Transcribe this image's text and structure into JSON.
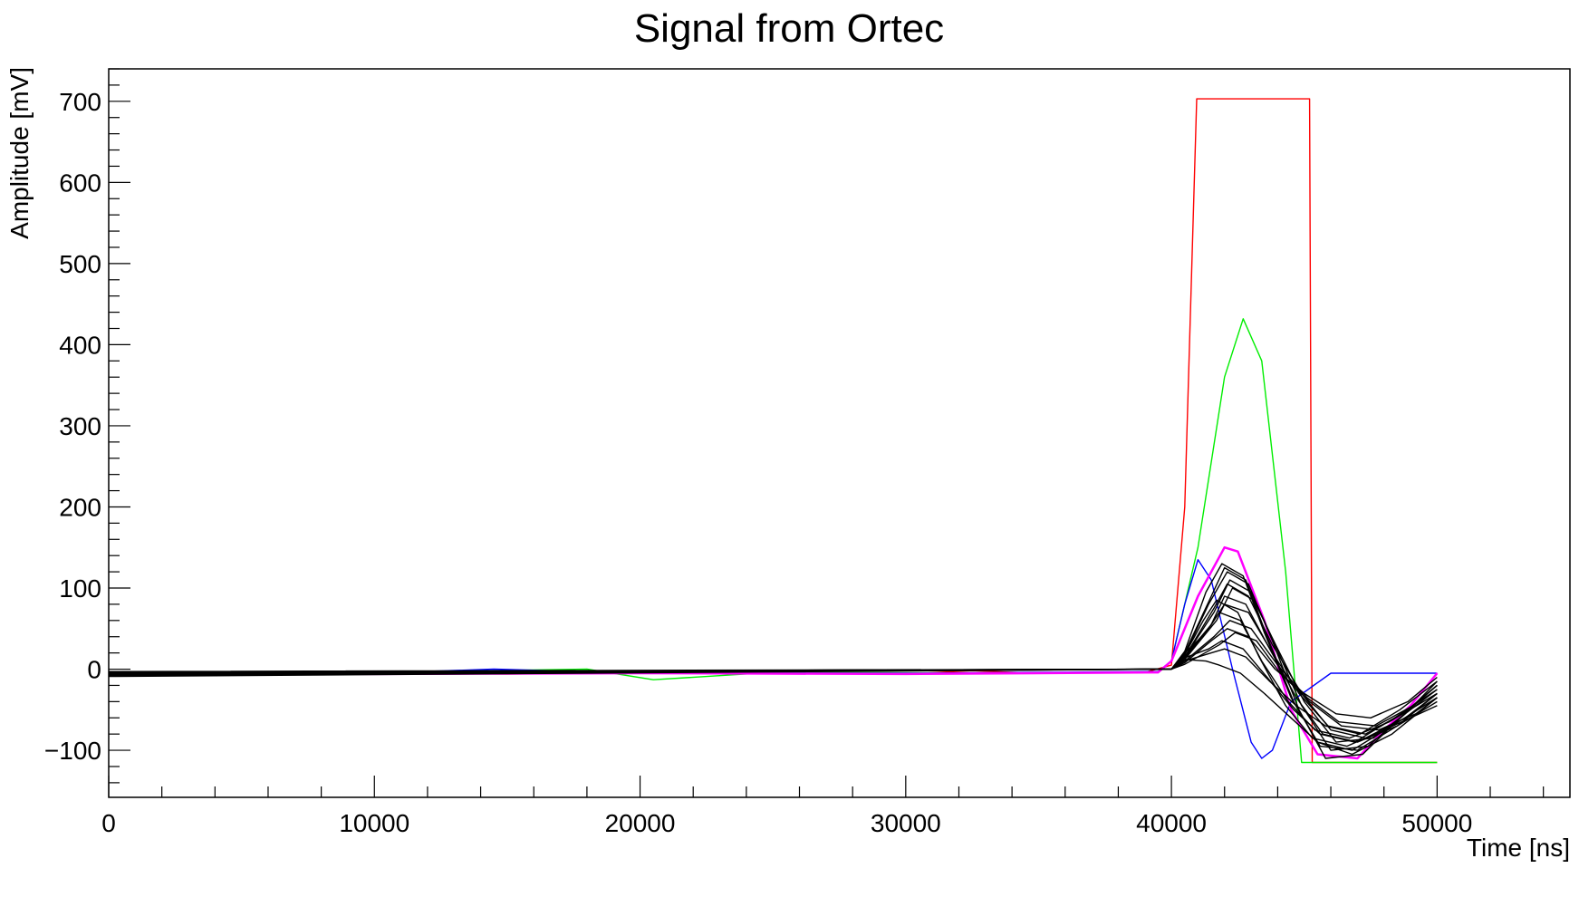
{
  "chart_data": {
    "type": "line",
    "title": "Signal from Ortec",
    "xlabel": "Time [ns]",
    "ylabel": "Amplitude [mV]",
    "xlim": [
      0,
      55000
    ],
    "ylim": [
      -158,
      740
    ],
    "x_ticks": [
      0,
      10000,
      20000,
      30000,
      40000,
      50000
    ],
    "x_tick_labels": [
      "0",
      "10000",
      "20000",
      "30000",
      "40000",
      "50000"
    ],
    "y_ticks": [
      -100,
      0,
      100,
      200,
      300,
      400,
      500,
      600,
      700
    ],
    "y_tick_labels": [
      "−100",
      "0",
      "100",
      "200",
      "300",
      "400",
      "500",
      "600",
      "700"
    ],
    "grid": false,
    "legend": "none",
    "colors": {
      "red": "#ff0000",
      "green": "#00ee00",
      "blue": "#0000ff",
      "magenta": "#ff00ff",
      "black": "#000000"
    },
    "series": [
      {
        "color": "red",
        "x": [
          0,
          5000,
          10000,
          15000,
          20000,
          25000,
          30000,
          32500,
          35000,
          39000,
          40000,
          40500,
          40950,
          45200,
          45300,
          46000,
          50000
        ],
        "y": [
          -6,
          -6,
          -5,
          -6,
          -5,
          -5,
          -6,
          -2,
          -5,
          -4,
          5,
          200,
          703,
          703,
          -115,
          -115,
          -115
        ]
      },
      {
        "color": "green",
        "x": [
          0,
          5000,
          10000,
          18000,
          20500,
          25000,
          35000,
          39500,
          40000,
          41000,
          42000,
          42700,
          43400,
          44300,
          44900,
          50000
        ],
        "y": [
          -5,
          -5,
          -4,
          0,
          -13,
          -4,
          -5,
          -3,
          10,
          150,
          360,
          432,
          380,
          120,
          -115,
          -115
        ]
      },
      {
        "color": "blue",
        "x": [
          0,
          10000,
          14500,
          20000,
          30000,
          39500,
          40000,
          40500,
          41000,
          41500,
          42300,
          43000,
          43400,
          43800,
          44500,
          46000,
          48000,
          50000
        ],
        "y": [
          -4,
          -5,
          0,
          -5,
          -5,
          -3,
          10,
          80,
          135,
          110,
          0,
          -90,
          -110,
          -100,
          -40,
          -5,
          -5,
          -5
        ]
      },
      {
        "color": "magenta",
        "x": [
          0,
          5000,
          10000,
          20000,
          30000,
          39500,
          40000,
          41000,
          42000,
          42500,
          43500,
          44500,
          45500,
          47000,
          48000,
          49000,
          50000
        ],
        "y": [
          -6,
          -5,
          -6,
          -5,
          -6,
          -4,
          10,
          90,
          150,
          145,
          60,
          -50,
          -105,
          -110,
          -75,
          -45,
          -5
        ]
      },
      {
        "color": "black",
        "x": [
          0,
          40000,
          40500,
          41500,
          42000,
          42800,
          43600,
          44600,
          45600,
          47000,
          48500,
          50000
        ],
        "y": [
          -5,
          0,
          20,
          90,
          125,
          110,
          40,
          -40,
          -95,
          -100,
          -70,
          -30
        ]
      },
      {
        "color": "black",
        "x": [
          0,
          40000,
          40500,
          41400,
          42100,
          42900,
          43800,
          44800,
          45800,
          47200,
          48600,
          50000
        ],
        "y": [
          -7,
          0,
          18,
          80,
          120,
          105,
          35,
          -50,
          -110,
          -105,
          -60,
          -20
        ]
      },
      {
        "color": "black",
        "x": [
          0,
          40000,
          40500,
          41600,
          42200,
          43000,
          43900,
          44900,
          46000,
          47400,
          48800,
          50000
        ],
        "y": [
          -4,
          0,
          15,
          70,
          110,
          95,
          30,
          -45,
          -100,
          -95,
          -55,
          -15
        ]
      },
      {
        "color": "black",
        "x": [
          0,
          40000,
          40500,
          41300,
          41900,
          42700,
          43500,
          44500,
          45500,
          46800,
          48300,
          50000
        ],
        "y": [
          -8,
          0,
          22,
          95,
          130,
          115,
          45,
          -35,
          -90,
          -105,
          -80,
          -35
        ]
      },
      {
        "color": "black",
        "x": [
          0,
          40000,
          40500,
          41700,
          42300,
          43100,
          44000,
          45000,
          46200,
          47600,
          49000,
          50000
        ],
        "y": [
          -3,
          0,
          12,
          60,
          100,
          85,
          25,
          -40,
          -90,
          -85,
          -50,
          -25
        ]
      },
      {
        "color": "black",
        "x": [
          0,
          40000,
          40500,
          41500,
          42000,
          42800,
          43700,
          44700,
          45700,
          47000,
          48500,
          50000
        ],
        "y": [
          -6,
          0,
          16,
          55,
          90,
          80,
          25,
          -35,
          -80,
          -90,
          -70,
          -40
        ]
      },
      {
        "color": "black",
        "x": [
          0,
          40000,
          40500,
          41400,
          42000,
          42900,
          43800,
          44800,
          45900,
          47300,
          48700,
          50000
        ],
        "y": [
          -5,
          0,
          14,
          50,
          80,
          70,
          20,
          -30,
          -70,
          -80,
          -55,
          -20
        ]
      },
      {
        "color": "black",
        "x": [
          0,
          40000,
          40500,
          41300,
          41800,
          42600,
          43400,
          44400,
          45400,
          46700,
          48200,
          50000
        ],
        "y": [
          -9,
          0,
          20,
          45,
          70,
          60,
          10,
          -40,
          -75,
          -85,
          -65,
          -30
        ]
      },
      {
        "color": "black",
        "x": [
          0,
          40000,
          40500,
          41600,
          42200,
          43000,
          44000,
          45100,
          46300,
          47700,
          49100,
          50000
        ],
        "y": [
          -4,
          0,
          10,
          40,
          60,
          50,
          5,
          -35,
          -65,
          -70,
          -45,
          -20
        ]
      },
      {
        "color": "black",
        "x": [
          0,
          40000,
          40500,
          41500,
          42100,
          42900,
          43900,
          45000,
          46200,
          47500,
          48900,
          50000
        ],
        "y": [
          -6,
          0,
          8,
          35,
          50,
          40,
          0,
          -30,
          -55,
          -60,
          -40,
          -10
        ]
      },
      {
        "color": "black",
        "x": [
          0,
          40000,
          40500,
          41200,
          41700,
          42500,
          43300,
          44300,
          45300,
          46600,
          48000,
          50000
        ],
        "y": [
          -7,
          0,
          18,
          60,
          85,
          70,
          15,
          -45,
          -85,
          -95,
          -75,
          -45
        ]
      },
      {
        "color": "black",
        "x": [
          0,
          40000,
          40500,
          41800,
          42400,
          43200,
          44100,
          45200,
          46400,
          47800,
          49200,
          50000
        ],
        "y": [
          -5,
          0,
          6,
          30,
          45,
          35,
          -5,
          -40,
          -70,
          -75,
          -55,
          -35
        ]
      },
      {
        "color": "black",
        "x": [
          0,
          40000,
          40500,
          41400,
          41900,
          42700,
          43600,
          44600,
          45600,
          46900,
          48400,
          50000
        ],
        "y": [
          -8,
          0,
          14,
          25,
          35,
          25,
          -10,
          -50,
          -80,
          -90,
          -60,
          -25
        ]
      },
      {
        "color": "black",
        "x": [
          0,
          40000,
          40500,
          41500,
          42000,
          42800,
          43700,
          44700,
          45800,
          47100,
          48600,
          50000
        ],
        "y": [
          -4,
          0,
          10,
          20,
          25,
          15,
          -15,
          -45,
          -70,
          -80,
          -50,
          -15
        ]
      },
      {
        "color": "black",
        "x": [
          0,
          40000,
          40500,
          41300,
          41800,
          42600,
          43500,
          44500,
          45500,
          46800,
          48300,
          50000
        ],
        "y": [
          -6,
          0,
          12,
          10,
          5,
          -5,
          -30,
          -60,
          -90,
          -100,
          -70,
          -35
        ]
      },
      {
        "color": "black",
        "x": [
          0,
          40000,
          40500,
          41600,
          42100,
          42900,
          43800,
          44900,
          46000,
          47300,
          48800,
          50000
        ],
        "y": [
          -5,
          0,
          15,
          75,
          105,
          90,
          30,
          -30,
          -75,
          -85,
          -60,
          -30
        ]
      }
    ]
  }
}
